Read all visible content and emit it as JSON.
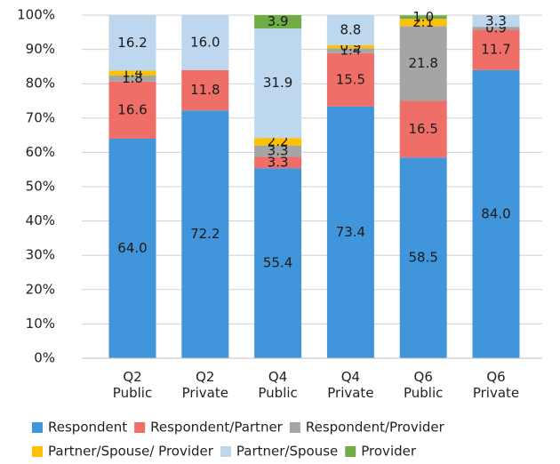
{
  "chart_data": {
    "type": "stacked_bar",
    "categories": [
      "Q2 Public",
      "Q2 Private",
      "Q4 Public",
      "Q4 Private",
      "Q6 Public",
      "Q6 Private"
    ],
    "ylim": [
      0,
      100
    ],
    "yticks": [
      {
        "value": 0,
        "label": "0%"
      },
      {
        "value": 10,
        "label": "10%"
      },
      {
        "value": 20,
        "label": "20%"
      },
      {
        "value": 30,
        "label": "30%"
      },
      {
        "value": 40,
        "label": "40%"
      },
      {
        "value": 50,
        "label": "50%"
      },
      {
        "value": 60,
        "label": "60%"
      },
      {
        "value": 70,
        "label": "70%"
      },
      {
        "value": 80,
        "label": "80%"
      },
      {
        "value": 90,
        "label": "90%"
      },
      {
        "value": 100,
        "label": "100%"
      }
    ],
    "grid": true,
    "legend": "bottom",
    "series": [
      {
        "name": "Respondent",
        "color": "#4196db",
        "values": [
          64.0,
          72.2,
          55.4,
          73.4,
          58.5,
          84.0
        ],
        "value_labels": [
          "64.0",
          "72.2",
          "55.4",
          "73.4",
          "58.5",
          "84.0"
        ]
      },
      {
        "name": "Respondent/Partner",
        "color": "#ef6e67",
        "values": [
          16.6,
          11.8,
          3.3,
          15.5,
          16.5,
          11.7
        ],
        "value_labels": [
          "16.6",
          "11.8",
          "3.3",
          "15.5",
          "16.5",
          "11.7"
        ]
      },
      {
        "name": "Respondent/Provider",
        "color": "#a5a5a5",
        "values": [
          1.8,
          null,
          3.3,
          1.4,
          21.8,
          0.9
        ],
        "value_labels": [
          "1.8",
          null,
          "3.3",
          "1.4",
          "21.8",
          "0.9"
        ]
      },
      {
        "name": "Partner/Spouse/ Provider",
        "color": "#ffc000",
        "values": [
          1.4,
          null,
          2.2,
          0.9,
          2.1,
          null
        ],
        "value_labels": [
          "1.4",
          null,
          "2.2",
          "0.9",
          "2.1",
          null
        ]
      },
      {
        "name": "Partner/Spouse",
        "color": "#bdd7ee",
        "values": [
          16.2,
          16.0,
          31.9,
          8.8,
          null,
          3.3
        ],
        "value_labels": [
          "16.2",
          "16.0",
          "31.9",
          "8.8",
          null,
          "3.3"
        ]
      },
      {
        "name": "Provider",
        "color": "#70ad47",
        "values": [
          null,
          null,
          3.9,
          null,
          1.0,
          null
        ],
        "value_labels": [
          null,
          null,
          "3.9",
          null,
          "1.0",
          null
        ]
      }
    ]
  }
}
